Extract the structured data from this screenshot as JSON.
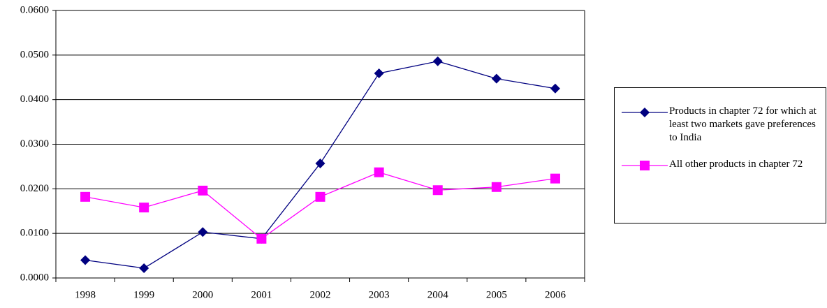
{
  "chart_data": {
    "type": "line",
    "categories": [
      "1998",
      "1999",
      "2000",
      "2001",
      "2002",
      "2003",
      "2004",
      "2005",
      "2006"
    ],
    "series": [
      {
        "name": "Products in chapter 72 for which at least two markets gave preferences to India",
        "color": "#000080",
        "marker": "diamond",
        "values": [
          0.004,
          0.0022,
          0.0103,
          0.0088,
          0.0257,
          0.0459,
          0.0486,
          0.0447,
          0.0425
        ]
      },
      {
        "name": "All other products in chapter 72",
        "color": "#ff00ff",
        "marker": "square",
        "values": [
          0.0182,
          0.0158,
          0.0196,
          0.0088,
          0.0182,
          0.0237,
          0.0197,
          0.0204,
          0.0223
        ]
      }
    ],
    "ylim": [
      0,
      0.06
    ],
    "yticks": [
      {
        "value": 0,
        "label": "0.0000"
      },
      {
        "value": 0.01,
        "label": "0.0100"
      },
      {
        "value": 0.02,
        "label": "0.0200"
      },
      {
        "value": 0.03,
        "label": "0.0300"
      },
      {
        "value": 0.04,
        "label": "0.0400"
      },
      {
        "value": 0.05,
        "label": "0.0500"
      },
      {
        "value": 0.06,
        "label": "0.0600"
      }
    ],
    "grid": true
  }
}
